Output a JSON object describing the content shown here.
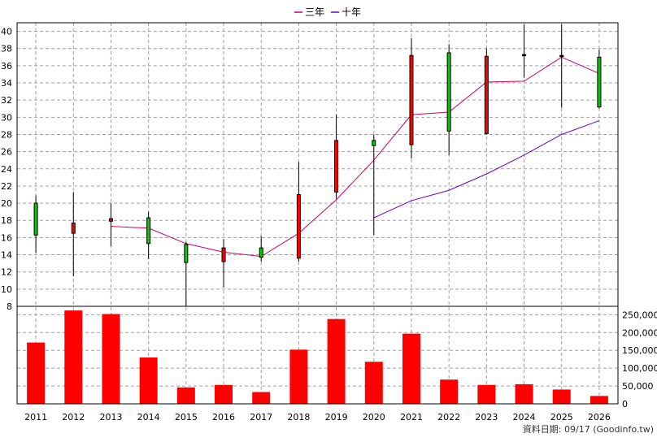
{
  "chart_data": {
    "type": "candlestick+bar",
    "legend": {
      "placement": "top-center",
      "items": [
        {
          "label": "三年",
          "color": "#cc0066"
        },
        {
          "label": "十年",
          "color": "#6600cc"
        }
      ]
    },
    "years": [
      "2011",
      "2012",
      "2013",
      "2014",
      "2015",
      "2016",
      "2017",
      "2018",
      "2019",
      "2020",
      "2021",
      "2022",
      "2023",
      "2024",
      "2025",
      "2026"
    ],
    "price_axis": {
      "ylim": [
        8,
        41
      ],
      "ticks": [
        "8",
        "10",
        "12",
        "14",
        "16",
        "18",
        "20",
        "22",
        "24",
        "26",
        "28",
        "30",
        "32",
        "34",
        "36",
        "38",
        "40"
      ]
    },
    "volume_axis": {
      "ylim": [
        0,
        260000
      ],
      "ticks": [
        "0",
        "50,000",
        "100,000",
        "150,000",
        "200,000",
        "250,000"
      ]
    },
    "candles": [
      {
        "year": "2011",
        "open": 16.3,
        "close": 20.0,
        "high": 20.9,
        "low": 14.2
      },
      {
        "year": "2012",
        "open": 17.7,
        "close": 16.5,
        "high": 21.3,
        "low": 11.5
      },
      {
        "year": "2013",
        "open": 18.2,
        "close": 17.9,
        "high": 20.0,
        "low": 15.0
      },
      {
        "year": "2014",
        "open": 15.3,
        "close": 18.3,
        "high": 19.0,
        "low": 13.5
      },
      {
        "year": "2015",
        "open": 13.1,
        "close": 15.2,
        "high": 15.5,
        "low": 8.0
      },
      {
        "year": "2016",
        "open": 14.8,
        "close": 13.2,
        "high": 15.8,
        "low": 10.2
      },
      {
        "year": "2017",
        "open": 13.7,
        "close": 14.8,
        "high": 16.2,
        "low": 13.2
      },
      {
        "year": "2018",
        "open": 21.0,
        "close": 13.6,
        "high": 24.8,
        "low": 13.2
      },
      {
        "year": "2019",
        "open": 27.3,
        "close": 21.3,
        "high": 30.3,
        "low": 20.5
      },
      {
        "year": "2020",
        "open": 26.7,
        "close": 27.3,
        "high": 28.0,
        "low": 16.3
      },
      {
        "year": "2021",
        "open": 37.2,
        "close": 26.8,
        "high": 39.2,
        "low": 25.2
      },
      {
        "year": "2022",
        "open": 28.4,
        "close": 37.5,
        "high": 38.5,
        "low": 25.6
      },
      {
        "year": "2023",
        "open": 37.1,
        "close": 28.1,
        "high": 38.0,
        "low": 28.0
      },
      {
        "year": "2024",
        "open": 37.3,
        "close": 37.2,
        "high": 40.8,
        "low": 34.6
      },
      {
        "year": "2025",
        "open": 37.2,
        "close": 37.2,
        "high": 40.8,
        "low": 31.1
      },
      {
        "year": "2026",
        "open": 31.2,
        "close": 37.0,
        "high": 37.9,
        "low": 31.0
      }
    ],
    "series": [
      {
        "name": "三年",
        "color": "#cc0066",
        "values": [
          null,
          null,
          17.3,
          17.1,
          15.3,
          14.3,
          13.8,
          16.5,
          20.4,
          25.0,
          30.3,
          30.6,
          34.1,
          34.2,
          37.0,
          35.1
        ]
      },
      {
        "name": "十年",
        "color": "#6600cc",
        "values": [
          null,
          null,
          null,
          null,
          null,
          null,
          null,
          null,
          null,
          18.3,
          20.3,
          21.5,
          23.4,
          25.6,
          28.0,
          29.6
        ]
      }
    ],
    "volume": [
      172000,
      262000,
      252000,
      130000,
      46000,
      53000,
      33000,
      152000,
      238000,
      118000,
      197000,
      68000,
      53000,
      55000,
      40000,
      22000
    ],
    "footer": "資料日期: 09/17  (Goodinfo.tw)"
  }
}
